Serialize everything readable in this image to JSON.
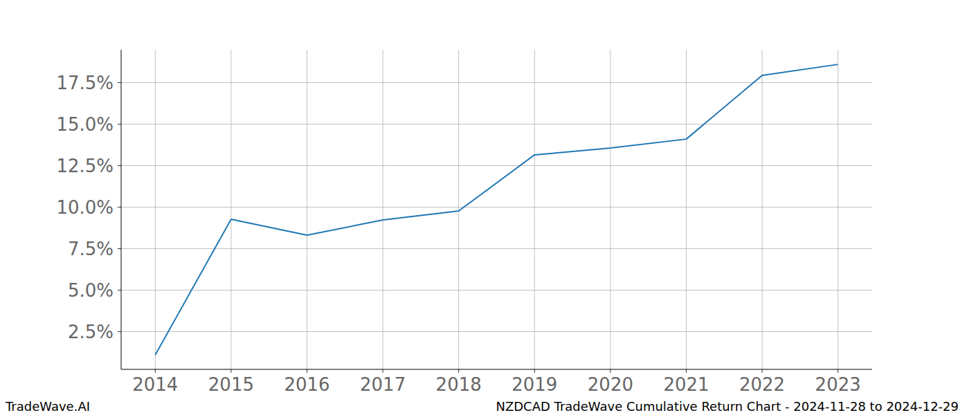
{
  "chart_data": {
    "type": "line",
    "title": "NZDCAD TradeWave Cumulative Return Chart - 2024-11-28 to 2024-12-29",
    "annotations": [
      "TradeWave.AI"
    ],
    "x": [
      2014,
      2015,
      2016,
      2017,
      2018,
      2019,
      2020,
      2021,
      2022,
      2023
    ],
    "series": [
      {
        "name": "NZDCAD",
        "color": "#1f77b4",
        "values": [
          1.1,
          9.27,
          8.31,
          9.23,
          9.77,
          13.15,
          13.56,
          14.1,
          17.94,
          18.6
        ]
      }
    ],
    "xlim": [
      2013.55,
      2023.45
    ],
    "xticks": [
      2014,
      2015,
      2016,
      2017,
      2018,
      2019,
      2020,
      2021,
      2022,
      2023
    ],
    "ylim": [
      0.23,
      19.48
    ],
    "yticks": [
      {
        "value": 2.5,
        "label": "2.5%"
      },
      {
        "value": 5.0,
        "label": "5.0%"
      },
      {
        "value": 7.5,
        "label": "7.5%"
      },
      {
        "value": 10.0,
        "label": "10.0%"
      },
      {
        "value": 12.5,
        "label": "12.5%"
      },
      {
        "value": 15.0,
        "label": "15.0%"
      },
      {
        "value": 17.5,
        "label": "17.5%"
      }
    ],
    "grid": true
  }
}
